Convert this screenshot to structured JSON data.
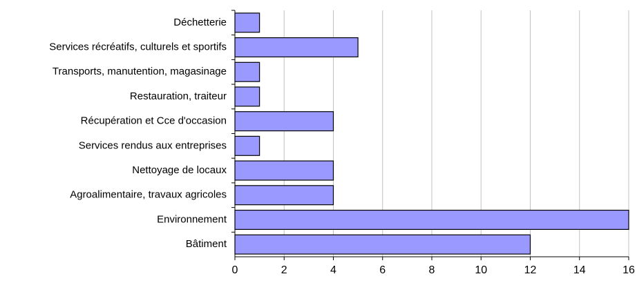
{
  "chart_data": {
    "type": "bar",
    "orientation": "horizontal",
    "categories": [
      "Déchetterie",
      "Services récréatifs, culturels et sportifs",
      "Transports, manutention, magasinage",
      "Restauration, traiteur",
      "Récupération et Cce d'occasion",
      "Services rendus aux entreprises",
      "Nettoyage de locaux",
      "Agroalimentaire, travaux agricoles",
      "Environnement",
      "Bâtiment"
    ],
    "values": [
      1,
      5,
      1,
      1,
      4,
      1,
      4,
      4,
      16,
      12
    ],
    "color": "#9999ff",
    "xlim": [
      0,
      16
    ],
    "xticks": [
      0,
      2,
      4,
      6,
      8,
      10,
      12,
      14,
      16
    ],
    "grid": true
  }
}
